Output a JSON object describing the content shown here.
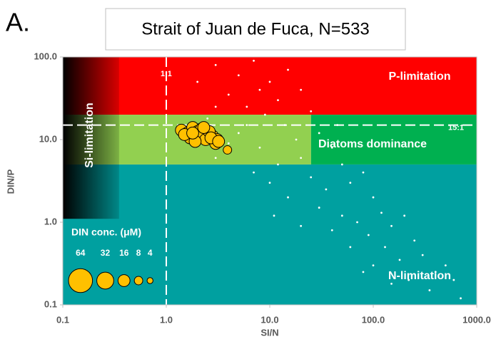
{
  "chart_data": {
    "type": "scatter",
    "panel_label": "A.",
    "title": "Strait of Juan de Fuca, N=533",
    "xlabel": "SI/N",
    "ylabel": "DIN/P",
    "xscale": "log",
    "yscale": "log",
    "xlim": [
      0.1,
      1000
    ],
    "ylim": [
      0.1,
      100
    ],
    "xticks": [
      0.1,
      {
        "value": 1,
        "label": "1.0"
      },
      {
        "value": 10,
        "label": "10.0"
      },
      {
        "value": 100,
        "label": "100.0"
      },
      {
        "value": 1000,
        "label": "1000.0"
      }
    ],
    "yticks": [
      0.1,
      {
        "value": 1,
        "label": "1.0"
      },
      {
        "value": 10,
        "label": "10.0"
      },
      {
        "value": 100,
        "label": "100.0"
      }
    ],
    "regions": [
      {
        "label": "N-limitation",
        "xrange": [
          0.1,
          1000
        ],
        "yrange": [
          0.1,
          5
        ],
        "color": "#00a0a0"
      },
      {
        "label": "P-limitation",
        "xrange": [
          0.1,
          1000
        ],
        "yrange": [
          20,
          100
        ],
        "color": "#ff0000"
      },
      {
        "label": "Diatoms dominance",
        "xrange": [
          25,
          1000
        ],
        "yrange": [
          5,
          20
        ],
        "color": "#00b050"
      },
      {
        "xrange": [
          0.1,
          25
        ],
        "yrange": [
          5,
          20
        ],
        "color": "#92d050"
      },
      {
        "label": "Si-limitation",
        "xrange": [
          0.1,
          0.35
        ],
        "yrange": [
          1.1,
          100
        ],
        "color": "#000000"
      }
    ],
    "ref_lines": [
      {
        "label": "1:1",
        "x": 1
      },
      {
        "label": "15:1",
        "y": 15
      }
    ],
    "series": [
      {
        "color": "#ffffff",
        "x": [
          3,
          5,
          7,
          8,
          4,
          10,
          6,
          12,
          15,
          9,
          20,
          3,
          25,
          14,
          5,
          8,
          18,
          30,
          12,
          20,
          40,
          10,
          25,
          50,
          15,
          35,
          60,
          80,
          30,
          50,
          100,
          70,
          120,
          40,
          90,
          150,
          200,
          60,
          130,
          250,
          180,
          300,
          100,
          400,
          220,
          500,
          350,
          150,
          600,
          3,
          4,
          6,
          2.5,
          7,
          45,
          2,
          11,
          20,
          700,
          80
        ],
        "y": [
          80,
          60,
          90,
          40,
          35,
          50,
          25,
          30,
          70,
          20,
          40,
          25,
          22,
          15,
          12,
          8,
          10,
          12,
          5,
          6,
          8,
          3,
          3.5,
          5,
          2,
          2.5,
          3,
          4,
          1.5,
          1.2,
          2,
          1,
          1.3,
          0.8,
          0.7,
          0.9,
          1.2,
          0.5,
          0.5,
          0.6,
          0.35,
          0.4,
          0.3,
          0.25,
          0.2,
          0.3,
          0.15,
          0.18,
          0.2,
          6,
          9,
          15,
          18,
          4,
          15,
          50,
          1.2,
          0.9,
          0.12,
          0.25
        ]
      },
      {
        "color": "#ffc000",
        "edgecolor": "#000000",
        "x": [
          1.4,
          1.6,
          1.8,
          2.0,
          2.2,
          2.5,
          2.8,
          3.1,
          1.7,
          2.1,
          2.4,
          1.5,
          1.9,
          2.6,
          3.0,
          2.3,
          1.8,
          2.7,
          3.2,
          3.9
        ],
        "y": [
          13,
          12,
          14,
          12.5,
          13.5,
          12,
          11,
          10,
          10.5,
          11,
          10,
          11.5,
          9.5,
          12.5,
          9,
          14,
          12,
          10.5,
          9.5,
          7.5
        ],
        "sizes": [
          16,
          16,
          16,
          16,
          16,
          16,
          16,
          16,
          16,
          16,
          16,
          16,
          16,
          16,
          16,
          16,
          16,
          16,
          16,
          8
        ]
      }
    ],
    "legend": {
      "title": "DIN conc. (μM)",
      "sizes": [
        64,
        32,
        16,
        8,
        4
      ],
      "color": "#ffc000"
    }
  }
}
